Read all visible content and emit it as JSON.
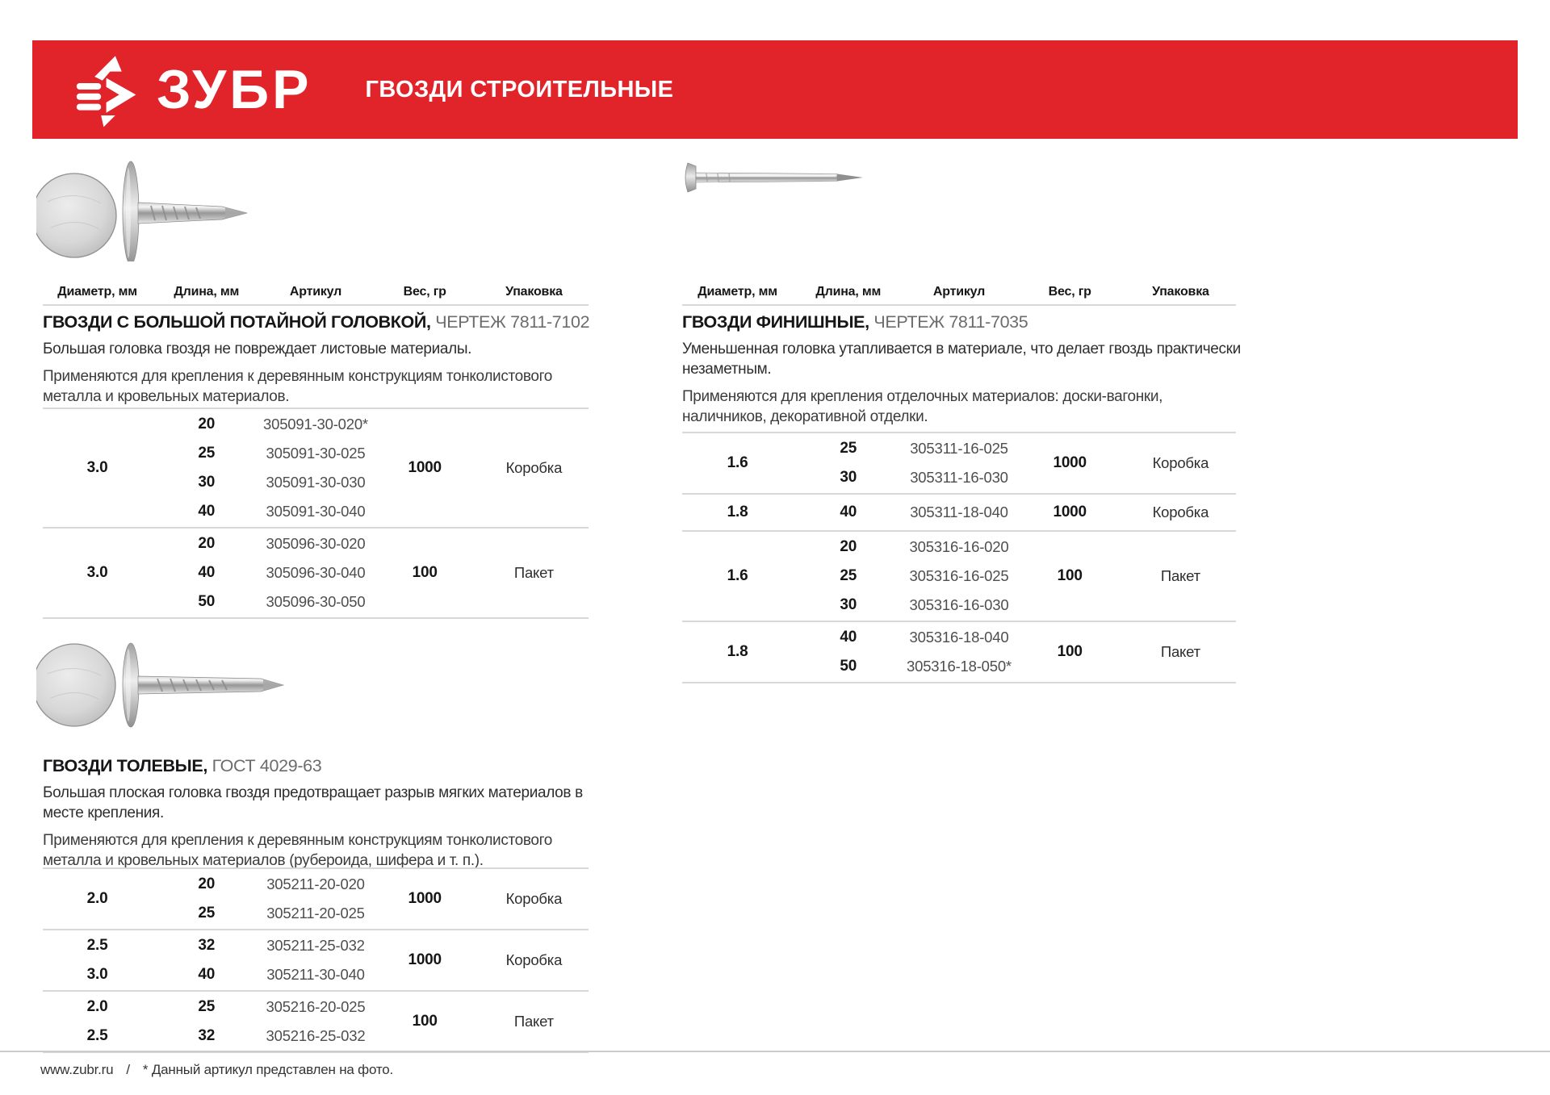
{
  "header": {
    "brand": "ЗУБР",
    "title": "ГВОЗДИ СТРОИТЕЛЬНЫЕ"
  },
  "colors": {
    "brand_red": "#e1232a",
    "hairline": "#d8d8d8",
    "text_dark": "#161618",
    "article_gray": "#4e4e50",
    "title_light": "#6b6c6e"
  },
  "columns": [
    "Диаметр, мм",
    "Длина, мм",
    "Артикул",
    "Вес, гр",
    "Упаковка"
  ],
  "icons": {
    "logo": "zubr-bison-icon",
    "photos": [
      "flat-head-nail-photo",
      "tolevye-nail-photo",
      "finish-nail-photo"
    ]
  },
  "sections": [
    {
      "title_bold": "ГВОЗДИ С БОЛЬШОЙ ПОТАЙНОЙ ГОЛОВКОЙ,",
      "title_light": "ЧЕРТЕЖ 7811-7102",
      "description": "Большая головка гвоздя не повреждает листовые материалы.",
      "application": "Применяются для крепления к деревянным конструкциям тонколистового металла и кровельных материалов.",
      "groups": [
        {
          "diameter": "3.0",
          "weight": "1000",
          "package": "Коробка",
          "rows": [
            {
              "length": "20",
              "article": "305091-30-020*"
            },
            {
              "length": "25",
              "article": "305091-30-025"
            },
            {
              "length": "30",
              "article": "305091-30-030"
            },
            {
              "length": "40",
              "article": "305091-30-040"
            }
          ]
        },
        {
          "diameter": "3.0",
          "weight": "100",
          "package": "Пакет",
          "rows": [
            {
              "length": "20",
              "article": "305096-30-020"
            },
            {
              "length": "40",
              "article": "305096-30-040"
            },
            {
              "length": "50",
              "article": "305096-30-050"
            }
          ]
        }
      ]
    },
    {
      "title_bold": "ГВОЗДИ ТОЛЕВЫЕ,",
      "title_light": "ГОСТ 4029-63",
      "description": "Большая плоская головка гвоздя предотвращает разрыв мягких материалов в месте крепления.",
      "application": "Применяются для крепления к деревянным конструкциям тонколистового металла и кровельных материалов (рубероида, шифера и т. п.).",
      "groups": [
        {
          "diameter": "2.0",
          "weight": "1000",
          "package": "Коробка",
          "rows": [
            {
              "length": "20",
              "article": "305211-20-020"
            },
            {
              "length": "25",
              "article": "305211-20-025"
            }
          ]
        },
        {
          "weight": "1000",
          "package": "Коробка",
          "rows": [
            {
              "diameter": "2.5",
              "length": "32",
              "article": "305211-25-032"
            },
            {
              "diameter": "3.0",
              "length": "40",
              "article": "305211-30-040"
            }
          ]
        },
        {
          "weight": "100",
          "package": "Пакет",
          "rows": [
            {
              "diameter": "2.0",
              "length": "25",
              "article": "305216-20-025"
            },
            {
              "diameter": "2.5",
              "length": "32",
              "article": "305216-25-032"
            }
          ]
        }
      ]
    },
    {
      "title_bold": "ГВОЗДИ ФИНИШНЫЕ,",
      "title_light": "ЧЕРТЕЖ 7811-7035",
      "description": "Уменьшенная головка утапливается в материале, что делает гвоздь практически незаметным.",
      "application": "Применяются для крепления отделочных материалов: доски-вагонки, наличников, декоративной отделки.",
      "groups": [
        {
          "diameter": "1.6",
          "weight": "1000",
          "package": "Коробка",
          "rows": [
            {
              "length": "25",
              "article": "305311-16-025"
            },
            {
              "length": "30",
              "article": "305311-16-030"
            }
          ]
        },
        {
          "diameter": "1.8",
          "weight": "1000",
          "package": "Коробка",
          "rows": [
            {
              "length": "40",
              "article": "305311-18-040"
            }
          ]
        },
        {
          "diameter": "1.6",
          "weight": "100",
          "package": "Пакет",
          "rows": [
            {
              "length": "20",
              "article": "305316-16-020"
            },
            {
              "length": "25",
              "article": "305316-16-025"
            },
            {
              "length": "30",
              "article": "305316-16-030"
            }
          ]
        },
        {
          "diameter": "1.8",
          "weight": "100",
          "package": "Пакет",
          "rows": [
            {
              "length": "40",
              "article": "305316-18-040"
            },
            {
              "length": "50",
              "article": "305316-18-050*"
            }
          ]
        }
      ]
    }
  ],
  "footer": {
    "site": "www.zubr.ru",
    "separator": "/",
    "note": "* Данный артикул представлен на фото."
  }
}
